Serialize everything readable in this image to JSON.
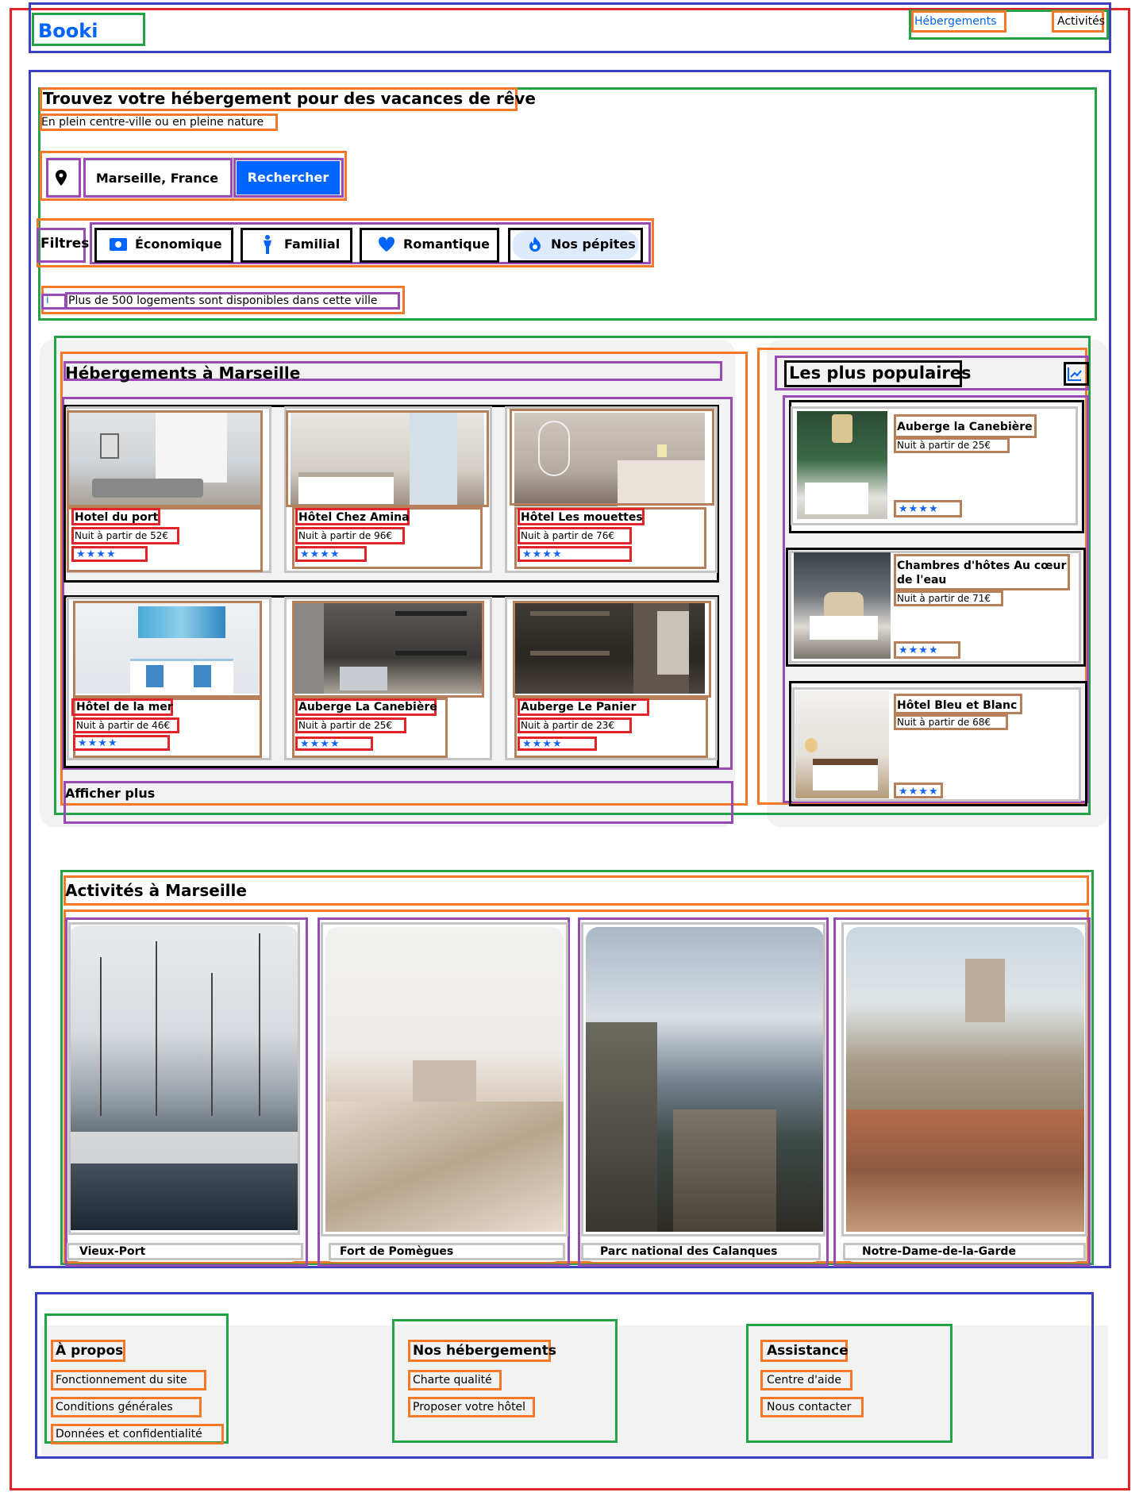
{
  "brand": {
    "logo": "Booki"
  },
  "nav": {
    "links": [
      "Hébergements",
      "Activités"
    ]
  },
  "hero": {
    "title": "Trouvez votre hébergement pour des vacances de rêve",
    "subtitle": "En plein centre-ville ou en pleine nature"
  },
  "search": {
    "location_value": "Marseille, France",
    "button_label": "Rechercher",
    "location_icon": "map-pin-icon"
  },
  "filters": {
    "label": "Filtres",
    "items": [
      {
        "label": "Économique",
        "icon": "money-icon"
      },
      {
        "label": "Familial",
        "icon": "child-icon"
      },
      {
        "label": "Romantique",
        "icon": "heart-icon"
      },
      {
        "label": "Nos pépites",
        "icon": "fire-icon"
      }
    ]
  },
  "info": {
    "text": "Plus de 500 logements sont disponibles dans cette ville",
    "icon": "info-icon"
  },
  "accommodations": {
    "title": "Hébergements à Marseille",
    "cards": [
      {
        "name": "Hotel du port",
        "price": "Nuit à partir de 52€",
        "rating": 4
      },
      {
        "name": "Hôtel Chez Amina",
        "price": "Nuit à partir de 96€",
        "rating": 4
      },
      {
        "name": "Hôtel Les mouettes",
        "price": "Nuit à partir de 76€",
        "rating": 4
      },
      {
        "name": "Hôtel de la mer",
        "price": "Nuit à partir de 46€",
        "rating": 4
      },
      {
        "name": "Auberge La Canebière",
        "price": "Nuit à partir de 25€",
        "rating": 4
      },
      {
        "name": "Auberge Le Panier",
        "price": "Nuit à partir de 23€",
        "rating": 4
      }
    ],
    "show_more": "Afficher plus"
  },
  "popular": {
    "title": "Les plus populaires",
    "icon": "trend-chart-icon",
    "cards": [
      {
        "name": "Auberge la Canebière",
        "price": "Nuit à partir de 25€",
        "rating": 4
      },
      {
        "name": "Chambres d'hôtes Au cœur de l'eau",
        "price": "Nuit à partir de 71€",
        "rating": 4
      },
      {
        "name": "Hôtel Bleu et Blanc",
        "price": "Nuit à partir de 68€",
        "rating": 4
      }
    ]
  },
  "activities": {
    "title": "Activités à Marseille",
    "cards": [
      {
        "name": "Vieux-Port"
      },
      {
        "name": "Fort de Pomègues"
      },
      {
        "name": "Parc national des Calanques"
      },
      {
        "name": "Notre-Dame-de-la-Garde"
      }
    ]
  },
  "footer": {
    "columns": [
      {
        "title": "À propos",
        "links": [
          "Fonctionnement du site",
          "Conditions générales",
          "Données et confidentialité"
        ]
      },
      {
        "title": "Nos hébergements",
        "links": [
          "Charte qualité",
          "Proposer votre hôtel"
        ]
      },
      {
        "title": "Assistance",
        "links": [
          "Centre d'aide",
          "Nous contacter"
        ]
      }
    ]
  },
  "colors": {
    "accent": "#0065fc",
    "debug_red": "#e0242a",
    "debug_blue": "#3c3fbf",
    "debug_green": "#25a244",
    "debug_orange": "#f4782a",
    "debug_purple": "#9a4ab5"
  }
}
